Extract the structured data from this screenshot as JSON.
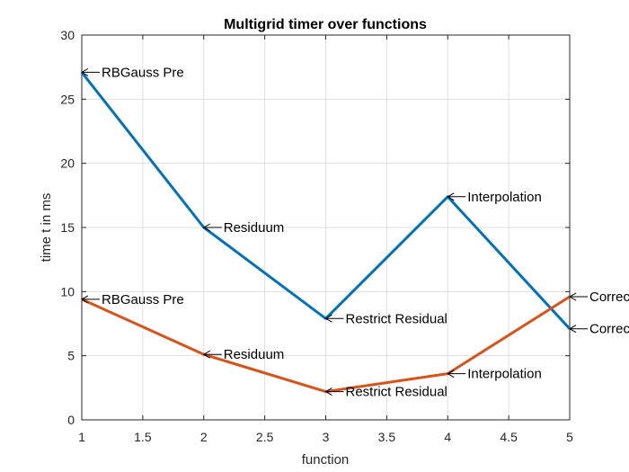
{
  "chart_data": {
    "type": "line",
    "title": "Multigrid timer over functions",
    "xlabel": "function",
    "ylabel": "time t in ms",
    "xlim": [
      1,
      5
    ],
    "ylim": [
      0,
      30
    ],
    "xticks": [
      1,
      1.5,
      2,
      2.5,
      3,
      3.5,
      4,
      4.5,
      5
    ],
    "yticks": [
      0,
      5,
      10,
      15,
      20,
      25,
      30
    ],
    "grid": true,
    "x": [
      1,
      2,
      3,
      4,
      5
    ],
    "series": [
      {
        "color": "#0072bd",
        "values": [
          27.1,
          15.0,
          7.9,
          17.4,
          7.1
        ],
        "point_labels": [
          "RBGauss Pre",
          "Residuum",
          "Restrict Residual",
          "Interpolation",
          "Correc"
        ]
      },
      {
        "color": "#d95319",
        "values": [
          9.4,
          5.1,
          2.2,
          3.6,
          9.6
        ],
        "point_labels": [
          "RBGauss Pre",
          "Residuum",
          "Restrict Residual",
          "Interpolation",
          "Correc"
        ]
      }
    ]
  }
}
